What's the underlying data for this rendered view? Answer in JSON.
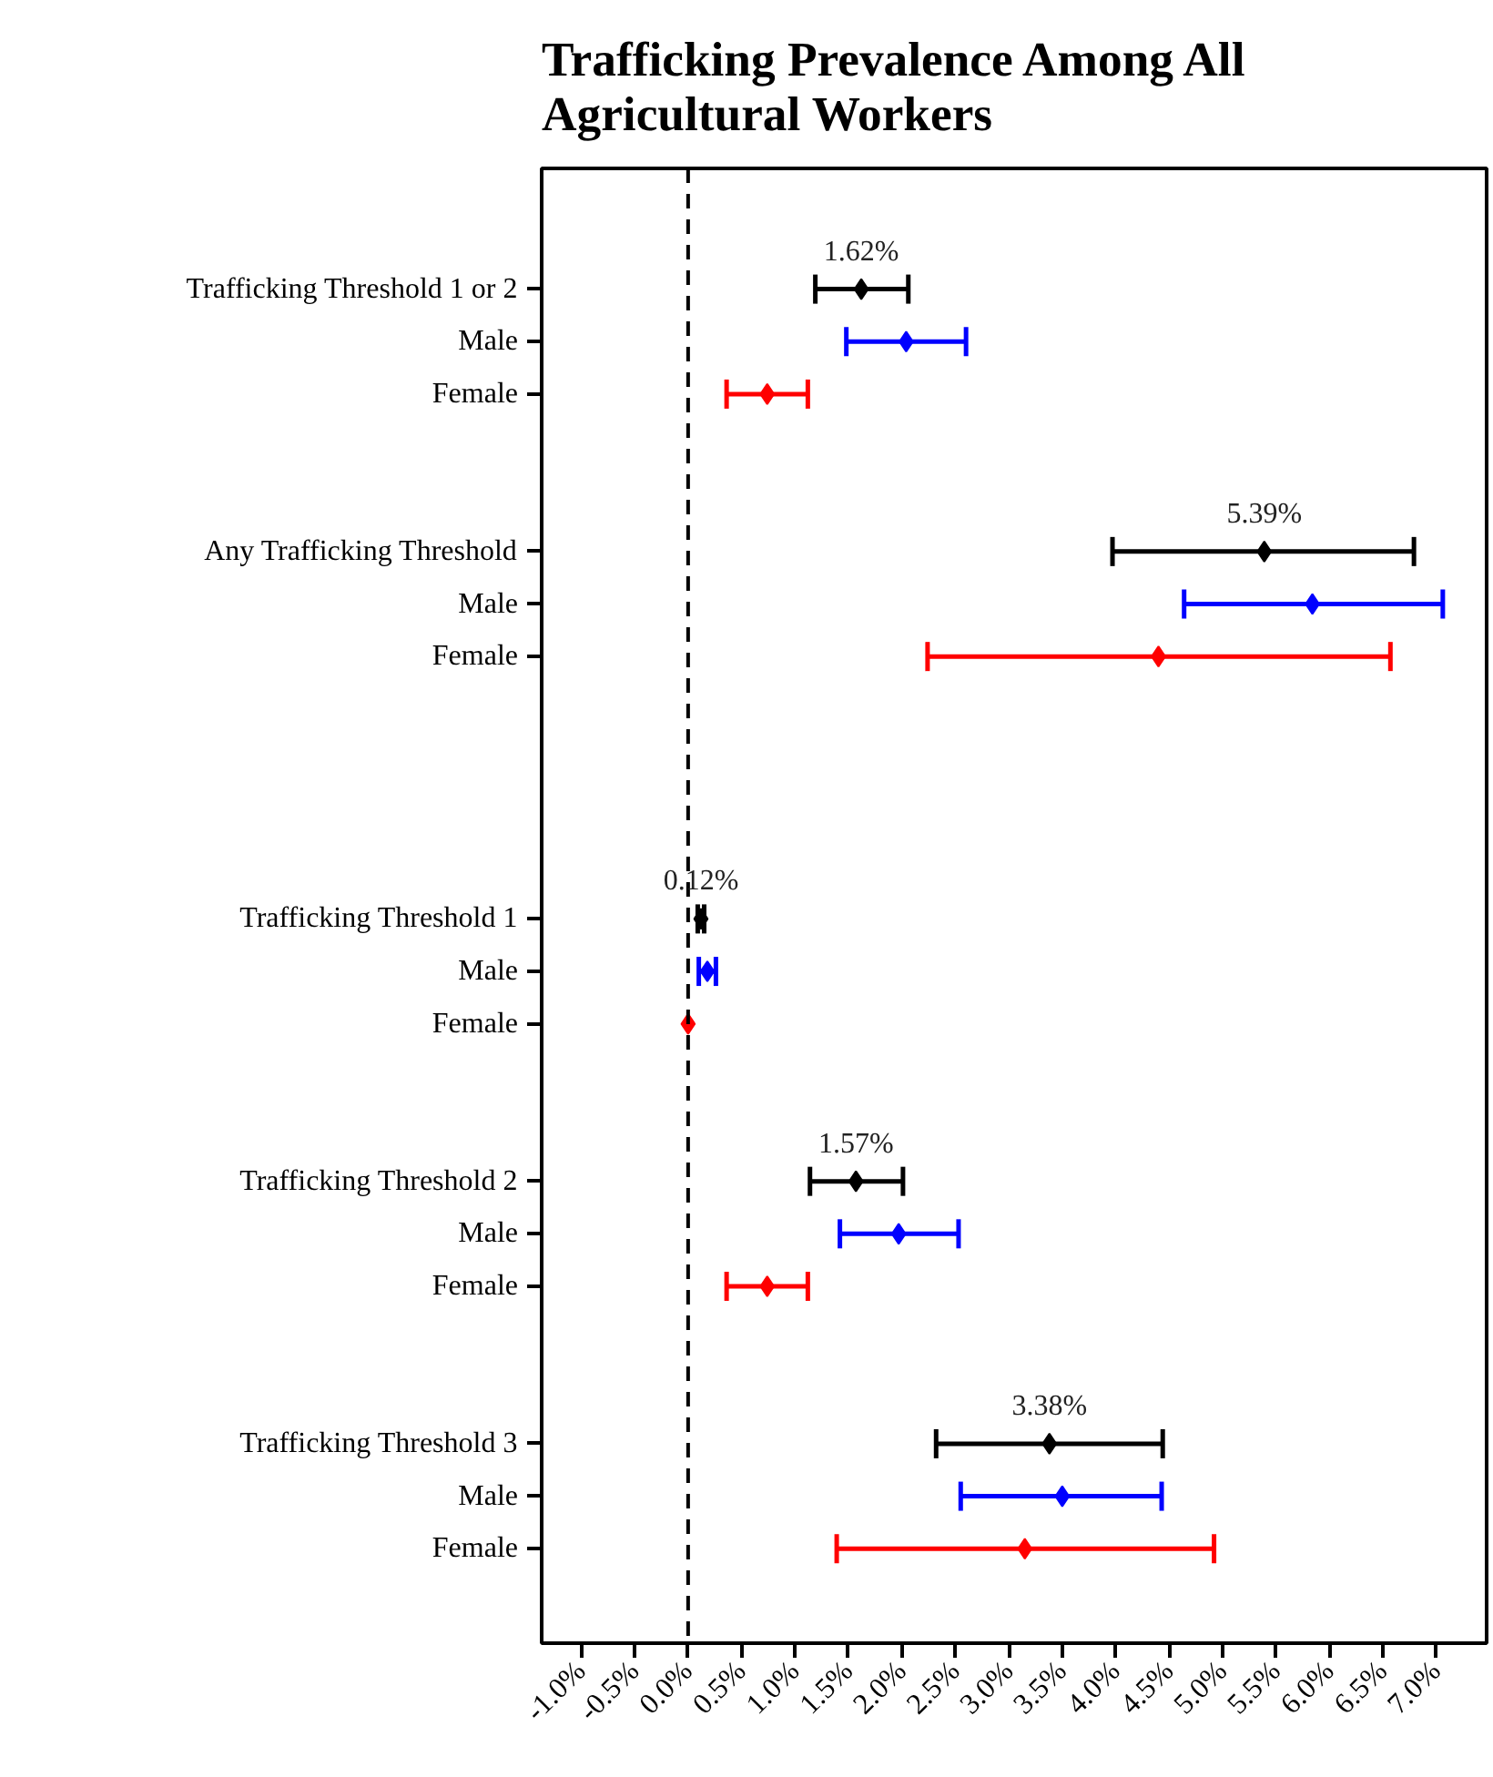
{
  "chart_data": {
    "type": "scatter",
    "orientation": "horizontal",
    "title": "Trafficking Prevalence Among All\nAgricultural Workers",
    "categories": [
      "Trafficking Threshold 1 or 2",
      "Male",
      "Female",
      null,
      null,
      "Any Trafficking Threshold",
      "Male",
      "Female",
      null,
      null,
      null,
      null,
      "Trafficking Threshold 1",
      "Male",
      "Female",
      null,
      null,
      "Trafficking Threshold 2",
      "Male",
      "Female",
      null,
      null,
      "Trafficking Threshold 3",
      "Male",
      "Female"
    ],
    "values": [
      1.62,
      2.04,
      0.74,
      null,
      null,
      5.39,
      5.84,
      4.4,
      null,
      null,
      null,
      null,
      0.12,
      0.18,
      0.0,
      null,
      null,
      1.57,
      1.97,
      0.74,
      null,
      null,
      3.38,
      3.5,
      3.15
    ],
    "errors": [
      [
        1.19,
        2.06
      ],
      [
        1.48,
        2.6
      ],
      [
        0.36,
        1.12
      ],
      null,
      null,
      [
        3.97,
        6.79
      ],
      [
        4.64,
        7.06
      ],
      [
        2.24,
        6.57
      ],
      null,
      null,
      null,
      null,
      [
        0.09,
        0.15
      ],
      [
        0.1,
        0.26
      ],
      null,
      null,
      null,
      [
        1.14,
        2.01
      ],
      [
        1.42,
        2.53
      ],
      [
        0.36,
        1.12
      ],
      null,
      null,
      [
        2.32,
        4.44
      ],
      [
        2.55,
        4.43
      ],
      [
        1.39,
        4.92
      ]
    ],
    "colors": [
      "#000000",
      "#0000ff",
      "#ff0000",
      null,
      null,
      "#000000",
      "#0000ff",
      "#ff0000",
      null,
      null,
      null,
      null,
      "#000000",
      "#0000ff",
      "#ff0000",
      null,
      null,
      "#000000",
      "#0000ff",
      "#ff0000",
      null,
      null,
      "#000000",
      "#0000ff",
      "#ff0000"
    ],
    "value_labels": [
      "1.62%",
      null,
      null,
      null,
      null,
      "5.39%",
      null,
      null,
      null,
      null,
      null,
      null,
      "0.12%",
      null,
      null,
      null,
      null,
      "1.57%",
      null,
      null,
      null,
      null,
      "3.38%",
      null,
      null
    ],
    "xlim": [
      -1.37,
      7.47
    ],
    "xticks": [
      {
        "value": -1.0,
        "label": "-1.0%"
      },
      {
        "value": -0.5,
        "label": "-0.5%"
      },
      {
        "value": 0.0,
        "label": "0.0%"
      },
      {
        "value": 0.5,
        "label": "0.5%"
      },
      {
        "value": 1.0,
        "label": "1.0%"
      },
      {
        "value": 1.5,
        "label": "1.5%"
      },
      {
        "value": 2.0,
        "label": "2.0%"
      },
      {
        "value": 2.5,
        "label": "2.5%"
      },
      {
        "value": 3.0,
        "label": "3.0%"
      },
      {
        "value": 3.5,
        "label": "3.5%"
      },
      {
        "value": 4.0,
        "label": "4.0%"
      },
      {
        "value": 4.5,
        "label": "4.5%"
      },
      {
        "value": 5.0,
        "label": "5.0%"
      },
      {
        "value": 5.5,
        "label": "5.5%"
      },
      {
        "value": 6.0,
        "label": "6.0%"
      },
      {
        "value": 6.5,
        "label": "6.5%"
      },
      {
        "value": 7.0,
        "label": "7.0%"
      }
    ],
    "ref_lines": [
      {
        "axis": "x",
        "value": 0.0,
        "color": "#000000",
        "line_style": "dashed"
      }
    ],
    "marker": "diamond",
    "grid": false
  }
}
